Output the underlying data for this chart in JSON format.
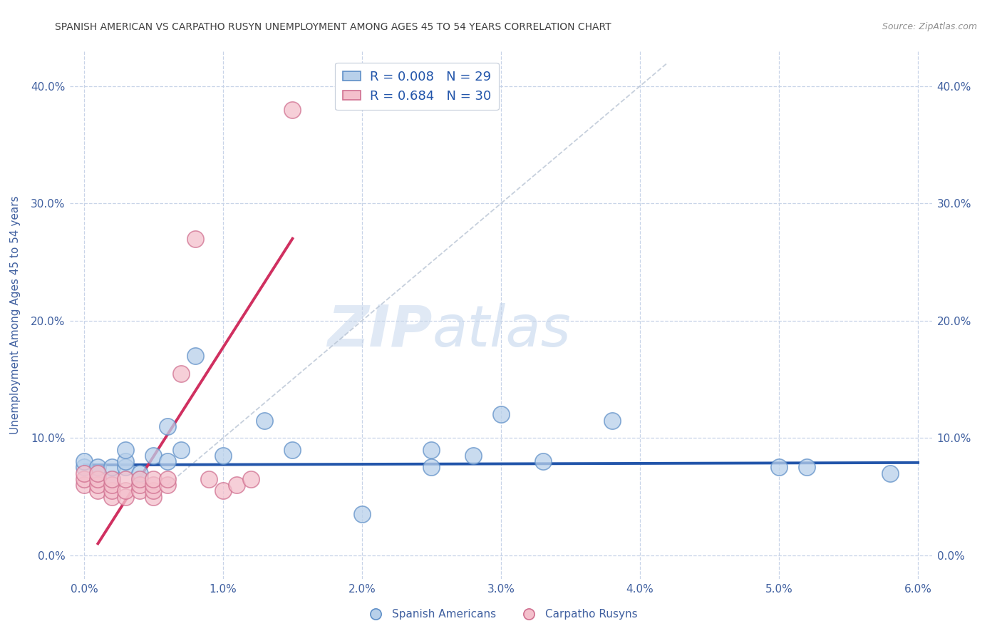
{
  "title": "SPANISH AMERICAN VS CARPATHO RUSYN UNEMPLOYMENT AMONG AGES 45 TO 54 YEARS CORRELATION CHART",
  "source": "Source: ZipAtlas.com",
  "ylabel": "Unemployment Among Ages 45 to 54 years",
  "xlim": [
    -0.001,
    0.061
  ],
  "ylim": [
    -0.02,
    0.43
  ],
  "xticks": [
    0.0,
    0.01,
    0.02,
    0.03,
    0.04,
    0.05,
    0.06
  ],
  "xtick_labels": [
    "0.0%",
    "1.0%",
    "2.0%",
    "3.0%",
    "4.0%",
    "5.0%",
    "6.0%"
  ],
  "yticks": [
    0.0,
    0.1,
    0.2,
    0.3,
    0.4
  ],
  "ytick_labels": [
    "0.0%",
    "10.0%",
    "20.0%",
    "30.0%",
    "40.0%"
  ],
  "blue_R": "0.008",
  "blue_N": "29",
  "pink_R": "0.684",
  "pink_N": "30",
  "blue_color": "#b8d0ea",
  "blue_edge_color": "#6090c8",
  "blue_line_color": "#2255aa",
  "pink_color": "#f4c0cc",
  "pink_edge_color": "#d07090",
  "pink_line_color": "#d03060",
  "watermark_text": "ZIPatlas",
  "blue_scatter_x": [
    0.0,
    0.0,
    0.001,
    0.001,
    0.002,
    0.002,
    0.003,
    0.003,
    0.003,
    0.004,
    0.004,
    0.005,
    0.006,
    0.006,
    0.007,
    0.008,
    0.01,
    0.013,
    0.015,
    0.02,
    0.025,
    0.025,
    0.028,
    0.03,
    0.033,
    0.038,
    0.05,
    0.052,
    0.058
  ],
  "blue_scatter_y": [
    0.075,
    0.08,
    0.07,
    0.075,
    0.065,
    0.075,
    0.075,
    0.08,
    0.09,
    0.065,
    0.07,
    0.085,
    0.08,
    0.11,
    0.09,
    0.17,
    0.085,
    0.115,
    0.09,
    0.035,
    0.075,
    0.09,
    0.085,
    0.12,
    0.08,
    0.115,
    0.075,
    0.075,
    0.07
  ],
  "pink_scatter_x": [
    0.0,
    0.0,
    0.0,
    0.001,
    0.001,
    0.001,
    0.001,
    0.002,
    0.002,
    0.002,
    0.002,
    0.003,
    0.003,
    0.003,
    0.004,
    0.004,
    0.004,
    0.005,
    0.005,
    0.005,
    0.005,
    0.006,
    0.006,
    0.007,
    0.008,
    0.009,
    0.01,
    0.011,
    0.012,
    0.015
  ],
  "pink_scatter_y": [
    0.06,
    0.065,
    0.07,
    0.055,
    0.06,
    0.065,
    0.07,
    0.05,
    0.055,
    0.06,
    0.065,
    0.05,
    0.055,
    0.065,
    0.055,
    0.06,
    0.065,
    0.05,
    0.055,
    0.06,
    0.065,
    0.06,
    0.065,
    0.155,
    0.27,
    0.065,
    0.055,
    0.06,
    0.065,
    0.38
  ],
  "blue_line_x": [
    0.0,
    0.06
  ],
  "blue_line_y": [
    0.077,
    0.079
  ],
  "pink_line_x": [
    0.001,
    0.015
  ],
  "pink_line_y": [
    0.01,
    0.27
  ],
  "diag_line_x": [
    0.006,
    0.042
  ],
  "diag_line_y": [
    0.06,
    0.42
  ],
  "background_color": "#ffffff",
  "grid_color": "#c8d4e8",
  "title_color": "#404040",
  "axis_label_color": "#4060a0",
  "tick_label_color": "#4060a0",
  "source_color": "#909090"
}
